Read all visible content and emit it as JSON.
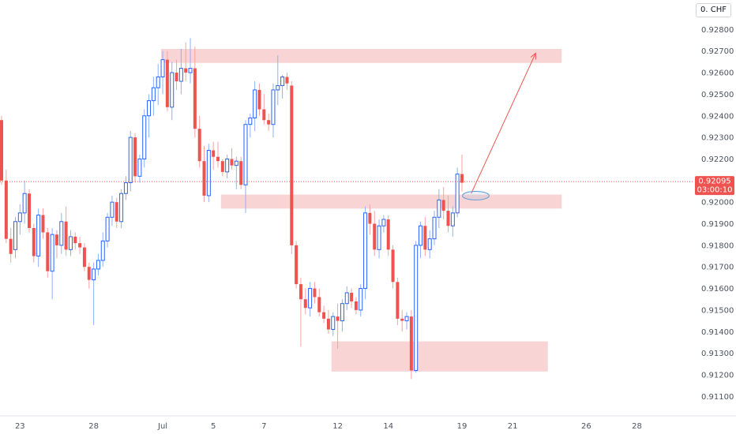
{
  "chart_data": {
    "type": "candlestick",
    "symbol_currency": "0. CHF",
    "ylim": [
      0.9105,
      0.929
    ],
    "y_ticks": [
      "0.92800",
      "0.92700",
      "0.92600",
      "0.92500",
      "0.92400",
      "0.92300",
      "0.92200",
      "0.92000",
      "0.91900",
      "0.91800",
      "0.91700",
      "0.91600",
      "0.91500",
      "0.91400",
      "0.91300",
      "0.91200",
      "0.91100"
    ],
    "x_ticks": [
      {
        "label": "23",
        "index": 4
      },
      {
        "label": "28",
        "index": 20
      },
      {
        "label": "Jul",
        "index": 35
      },
      {
        "label": "5",
        "index": 46
      },
      {
        "label": "7",
        "index": 57
      },
      {
        "label": "12",
        "index": 73
      },
      {
        "label": "14",
        "index": 84
      },
      {
        "label": "19",
        "index": 100
      },
      {
        "label": "21",
        "index": 111
      },
      {
        "label": "26",
        "index": 127
      },
      {
        "label": "28",
        "index": 138
      }
    ],
    "current_price": "0.92095",
    "countdown": "03:00:10",
    "colors": {
      "up": "#2962ff",
      "down": "#ef5350",
      "zone": "#f7c5c7",
      "ellipse": "#5b9bd5"
    },
    "candles": [
      [
        0.9238,
        0.924,
        0.9208,
        0.921
      ],
      [
        0.921,
        0.9215,
        0.9181,
        0.9183
      ],
      [
        0.9183,
        0.9188,
        0.9172,
        0.9176
      ],
      [
        0.9178,
        0.9193,
        0.9174,
        0.9191
      ],
      [
        0.9191,
        0.9199,
        0.9185,
        0.9195
      ],
      [
        0.9195,
        0.921,
        0.919,
        0.9204
      ],
      [
        0.9204,
        0.9206,
        0.9186,
        0.9188
      ],
      [
        0.9188,
        0.919,
        0.9172,
        0.9175
      ],
      [
        0.9175,
        0.9197,
        0.917,
        0.9194
      ],
      [
        0.9194,
        0.9197,
        0.9183,
        0.9186
      ],
      [
        0.9186,
        0.9188,
        0.9165,
        0.9168
      ],
      [
        0.9168,
        0.9188,
        0.9155,
        0.9185
      ],
      [
        0.9185,
        0.9187,
        0.9174,
        0.918
      ],
      [
        0.918,
        0.9195,
        0.9176,
        0.9191
      ],
      [
        0.9191,
        0.9198,
        0.9175,
        0.9178
      ],
      [
        0.9178,
        0.9187,
        0.9175,
        0.9184
      ],
      [
        0.9184,
        0.9186,
        0.9178,
        0.9181
      ],
      [
        0.9181,
        0.9184,
        0.9176,
        0.9179
      ],
      [
        0.9179,
        0.9181,
        0.9168,
        0.917
      ],
      [
        0.917,
        0.9172,
        0.916,
        0.9164
      ],
      [
        0.9164,
        0.9172,
        0.9143,
        0.9169
      ],
      [
        0.9169,
        0.9176,
        0.9166,
        0.9173
      ],
      [
        0.9173,
        0.9186,
        0.917,
        0.9182
      ],
      [
        0.9182,
        0.9195,
        0.9179,
        0.9193
      ],
      [
        0.9193,
        0.9203,
        0.9189,
        0.92
      ],
      [
        0.92,
        0.9202,
        0.9188,
        0.9191
      ],
      [
        0.9191,
        0.9206,
        0.9188,
        0.9204
      ],
      [
        0.9204,
        0.9212,
        0.9201,
        0.9209
      ],
      [
        0.9209,
        0.9233,
        0.9205,
        0.923
      ],
      [
        0.923,
        0.9232,
        0.9209,
        0.9212
      ],
      [
        0.9212,
        0.9222,
        0.9209,
        0.922
      ],
      [
        0.922,
        0.9243,
        0.9216,
        0.924
      ],
      [
        0.924,
        0.925,
        0.923,
        0.9247
      ],
      [
        0.9247,
        0.9258,
        0.924,
        0.9253
      ],
      [
        0.9253,
        0.9264,
        0.9245,
        0.9258
      ],
      [
        0.9258,
        0.927,
        0.925,
        0.9266
      ],
      [
        0.9266,
        0.927,
        0.9242,
        0.9244
      ],
      [
        0.9244,
        0.9265,
        0.9238,
        0.926
      ],
      [
        0.926,
        0.9266,
        0.9252,
        0.9256
      ],
      [
        0.9256,
        0.9271,
        0.925,
        0.9262
      ],
      [
        0.9262,
        0.9274,
        0.9256,
        0.926
      ],
      [
        0.926,
        0.9276,
        0.9255,
        0.9262
      ],
      [
        0.9262,
        0.9272,
        0.923,
        0.9234
      ],
      [
        0.9234,
        0.924,
        0.9216,
        0.9219
      ],
      [
        0.9219,
        0.9226,
        0.92,
        0.9203
      ],
      [
        0.9203,
        0.9227,
        0.92,
        0.9224
      ],
      [
        0.9224,
        0.9228,
        0.9215,
        0.9221
      ],
      [
        0.9221,
        0.9228,
        0.9216,
        0.9219
      ],
      [
        0.9219,
        0.922,
        0.9212,
        0.9214
      ],
      [
        0.9214,
        0.9222,
        0.9211,
        0.922
      ],
      [
        0.922,
        0.9225,
        0.9215,
        0.9217
      ],
      [
        0.9217,
        0.9221,
        0.9206,
        0.9219
      ],
      [
        0.9219,
        0.9221,
        0.9206,
        0.9208
      ],
      [
        0.9208,
        0.9238,
        0.9195,
        0.9236
      ],
      [
        0.9236,
        0.9241,
        0.923,
        0.9239
      ],
      [
        0.9239,
        0.9256,
        0.9233,
        0.9252
      ],
      [
        0.9252,
        0.9255,
        0.924,
        0.9243
      ],
      [
        0.9243,
        0.925,
        0.9236,
        0.9238
      ],
      [
        0.9238,
        0.9241,
        0.9233,
        0.9236
      ],
      [
        0.9236,
        0.9255,
        0.923,
        0.9252
      ],
      [
        0.9252,
        0.9268,
        0.9245,
        0.9254
      ],
      [
        0.9254,
        0.9259,
        0.9248,
        0.9258
      ],
      [
        0.9258,
        0.926,
        0.9252,
        0.9255
      ],
      [
        0.9254,
        0.9256,
        0.9176,
        0.918
      ],
      [
        0.918,
        0.9182,
        0.916,
        0.9162
      ],
      [
        0.9162,
        0.9165,
        0.9133,
        0.9155
      ],
      [
        0.9155,
        0.916,
        0.9148,
        0.9151
      ],
      [
        0.9151,
        0.9163,
        0.9147,
        0.916
      ],
      [
        0.916,
        0.9163,
        0.9153,
        0.9156
      ],
      [
        0.9156,
        0.916,
        0.9147,
        0.9149
      ],
      [
        0.9149,
        0.9152,
        0.9144,
        0.9146
      ],
      [
        0.9146,
        0.915,
        0.9139,
        0.9141
      ],
      [
        0.9141,
        0.9149,
        0.9138,
        0.9147
      ],
      [
        0.9147,
        0.9153,
        0.9132,
        0.9145
      ],
      [
        0.9145,
        0.9155,
        0.914,
        0.9153
      ],
      [
        0.9153,
        0.9161,
        0.915,
        0.9158
      ],
      [
        0.9158,
        0.916,
        0.9151,
        0.9154
      ],
      [
        0.9154,
        0.9156,
        0.9148,
        0.915
      ],
      [
        0.915,
        0.9162,
        0.9147,
        0.916
      ],
      [
        0.916,
        0.9198,
        0.9155,
        0.9195
      ],
      [
        0.9195,
        0.9199,
        0.9185,
        0.919
      ],
      [
        0.919,
        0.9196,
        0.9175,
        0.9178
      ],
      [
        0.9178,
        0.9192,
        0.9174,
        0.9189
      ],
      [
        0.9189,
        0.9194,
        0.9186,
        0.9192
      ],
      [
        0.9192,
        0.9194,
        0.9175,
        0.9178
      ],
      [
        0.9178,
        0.918,
        0.916,
        0.9163
      ],
      [
        0.9163,
        0.9165,
        0.9143,
        0.9146
      ],
      [
        0.9146,
        0.915,
        0.914,
        0.9145
      ],
      [
        0.9145,
        0.9149,
        0.9141,
        0.9147
      ],
      [
        0.9147,
        0.915,
        0.9118,
        0.9122
      ],
      [
        0.9122,
        0.9182,
        0.9121,
        0.918
      ],
      [
        0.918,
        0.9191,
        0.9174,
        0.9189
      ],
      [
        0.9189,
        0.9193,
        0.9175,
        0.9178
      ],
      [
        0.9178,
        0.9187,
        0.9174,
        0.9183
      ],
      [
        0.9183,
        0.9196,
        0.918,
        0.9193
      ],
      [
        0.9193,
        0.9206,
        0.9188,
        0.9201
      ],
      [
        0.9201,
        0.9207,
        0.9192,
        0.9196
      ],
      [
        0.9196,
        0.9203,
        0.9186,
        0.9189
      ],
      [
        0.9189,
        0.9198,
        0.9184,
        0.9195
      ],
      [
        0.9195,
        0.9216,
        0.9193,
        0.9213
      ],
      [
        0.9213,
        0.9222,
        0.9205,
        0.9209
      ]
    ],
    "zones": [
      {
        "name": "top-resistance-zone",
        "from_index": 35,
        "to_index": 122,
        "low": 0.92645,
        "high": 0.9271
      },
      {
        "name": "support-flip-zone",
        "from_index": 48,
        "to_index": 122,
        "low": 0.9197,
        "high": 0.92035
      },
      {
        "name": "bottom-support-zone",
        "from_index": 72,
        "to_index": 119,
        "low": 0.91215,
        "high": 0.91355
      }
    ],
    "projection_arrow": {
      "from": {
        "index": 102,
        "price": 0.9204
      },
      "to": {
        "index": 116,
        "price": 0.9269
      }
    },
    "retest_ellipse": {
      "index": 103,
      "price": 0.9203,
      "index_radius": 2.9,
      "price_radius": 0.0002
    }
  }
}
